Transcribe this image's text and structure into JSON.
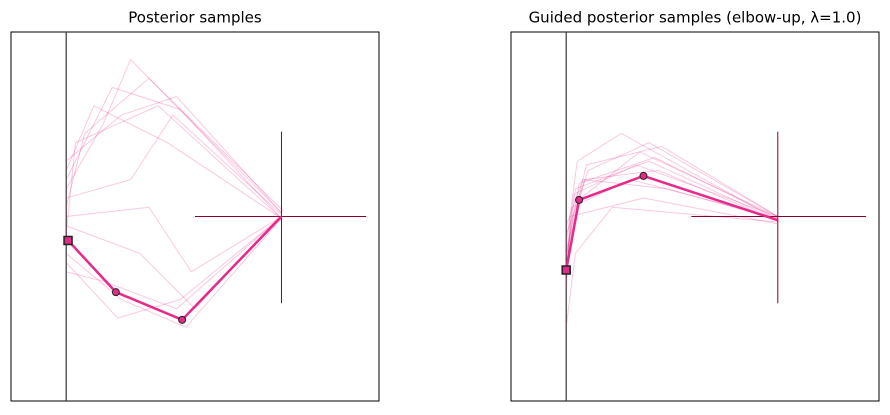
{
  "chart_data": [
    {
      "type": "line",
      "title": "Posterior samples",
      "xlim": [
        -0.3,
        1.7
      ],
      "ylim": [
        -1,
        1
      ],
      "color": "#e7298a",
      "base_x": 0,
      "target": {
        "x": 1.17,
        "y": 0.0,
        "xspan": [
          0.7,
          1.63
        ],
        "yspan": [
          -0.47,
          0.46
        ]
      },
      "arm": {
        "x": [
          0.01,
          0.27,
          0.63,
          1.17
        ],
        "values": [
          -0.13,
          -0.41,
          -0.56,
          0.0
        ]
      },
      "samples": [
        {
          "x": [
            0,
            0.3,
            0.6,
            1.17
          ],
          "values": [
            0.3,
            0.55,
            0.65,
            0.02
          ]
        },
        {
          "x": [
            0,
            0.25,
            0.62,
            1.16
          ],
          "values": [
            0.2,
            0.7,
            0.58,
            0.0
          ]
        },
        {
          "x": [
            0,
            0.05,
            0.5,
            1.18
          ],
          "values": [
            -0.1,
            0.4,
            0.6,
            -0.02
          ]
        },
        {
          "x": [
            0,
            0.35,
            0.58,
            1.17
          ],
          "values": [
            0.1,
            0.2,
            0.55,
            0.01
          ]
        },
        {
          "x": [
            0,
            0.2,
            0.6,
            1.17
          ],
          "values": [
            -0.3,
            -0.35,
            -0.5,
            0.0
          ]
        },
        {
          "x": [
            0,
            0.3,
            0.65,
            1.17
          ],
          "values": [
            -0.2,
            -0.45,
            -0.6,
            -0.01
          ]
        },
        {
          "x": [
            0,
            0.1,
            0.45,
            1.18
          ],
          "values": [
            0.05,
            0.45,
            0.75,
            0.03
          ]
        },
        {
          "x": [
            0,
            0.4,
            0.7,
            1.16
          ],
          "values": [
            -0.05,
            -0.2,
            -0.5,
            0.0
          ]
        },
        {
          "x": [
            0,
            0.15,
            0.55,
            1.17
          ],
          "values": [
            0.25,
            0.6,
            0.4,
            -0.01
          ]
        },
        {
          "x": [
            0,
            0.28,
            0.62,
            1.17
          ],
          "values": [
            -0.25,
            -0.55,
            -0.45,
            0.0
          ]
        },
        {
          "x": [
            0,
            0.2,
            0.35,
            1.17
          ],
          "values": [
            0.15,
            0.5,
            0.85,
            0.02
          ]
        },
        {
          "x": [
            0,
            0.45,
            0.68,
            1.17
          ],
          "values": [
            0.0,
            0.05,
            -0.3,
            0.0
          ]
        }
      ]
    },
    {
      "type": "line",
      "title": "Guided posterior samples (elbow-up, λ=1.0)",
      "xlim": [
        -0.3,
        1.7
      ],
      "ylim": [
        -1,
        1
      ],
      "color": "#e7298a",
      "base_x": 0,
      "target": {
        "x": 1.15,
        "y": 0.0,
        "xspan": [
          0.68,
          1.63
        ],
        "yspan": [
          -0.47,
          0.46
        ]
      },
      "arm": {
        "x": [
          0.0,
          0.07,
          0.42,
          1.15
        ],
        "values": [
          -0.29,
          0.09,
          0.22,
          -0.02
        ]
      },
      "samples": [
        {
          "x": [
            0,
            0.05,
            0.45,
            1.15
          ],
          "values": [
            -0.3,
            0.15,
            0.3,
            -0.02
          ]
        },
        {
          "x": [
            0,
            0.08,
            0.4,
            1.15
          ],
          "values": [
            -0.25,
            0.1,
            0.35,
            0.0
          ]
        },
        {
          "x": [
            0,
            0.1,
            0.5,
            1.16
          ],
          "values": [
            -0.2,
            0.2,
            0.25,
            -0.03
          ]
        },
        {
          "x": [
            0,
            0.03,
            0.35,
            1.15
          ],
          "values": [
            -0.35,
            0.05,
            0.2,
            -0.01
          ]
        },
        {
          "x": [
            0,
            0.12,
            0.45,
            1.15
          ],
          "values": [
            -0.1,
            0.25,
            0.4,
            0.0
          ]
        },
        {
          "x": [
            0,
            0.06,
            0.3,
            1.15
          ],
          "values": [
            -0.15,
            0.3,
            0.45,
            -0.02
          ]
        },
        {
          "x": [
            0,
            0.02,
            0.42,
            1.15
          ],
          "values": [
            -0.4,
            0.0,
            0.1,
            -0.04
          ]
        },
        {
          "x": [
            0,
            0.09,
            0.55,
            1.16
          ],
          "values": [
            -0.05,
            0.2,
            0.15,
            -0.02
          ]
        },
        {
          "x": [
            0,
            0.04,
            0.38,
            1.15
          ],
          "values": [
            -0.28,
            0.12,
            0.28,
            0.0
          ]
        },
        {
          "x": [
            0,
            0.07,
            0.48,
            1.15
          ],
          "values": [
            -0.22,
            0.18,
            0.32,
            -0.01
          ]
        },
        {
          "x": [
            0,
            0.05,
            0.25,
            1.15
          ],
          "values": [
            -0.6,
            -0.2,
            0.05,
            -0.03
          ]
        },
        {
          "x": [
            0,
            0.11,
            0.52,
            1.15
          ],
          "values": [
            -0.18,
            0.28,
            0.38,
            0.0
          ]
        }
      ]
    }
  ]
}
